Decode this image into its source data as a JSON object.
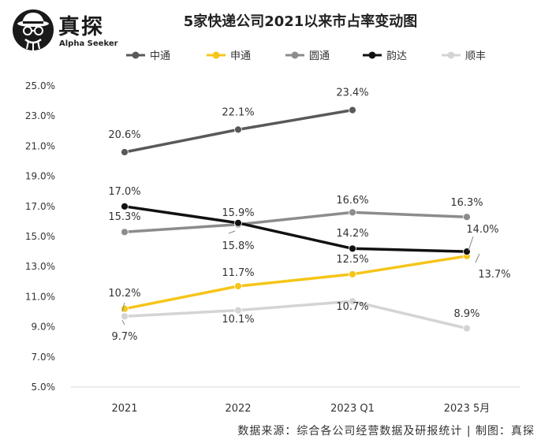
{
  "brand": {
    "name_cn": "真探",
    "name_en": "Alpha Seeker"
  },
  "source_note": "数据来源：综合各公司经营数据及研报统计 | 制图：真探",
  "chart_data": {
    "type": "line",
    "title": "5家快递公司2021以来市占率变动图",
    "xlabel": "",
    "ylabel": "",
    "categories": [
      "2021",
      "2022",
      "2023 Q1",
      "2023 5月"
    ],
    "ylim": [
      5.0,
      25.0
    ],
    "yticks": [
      "5.0%",
      "7.0%",
      "9.0%",
      "11.0%",
      "13.0%",
      "15.0%",
      "17.0%",
      "19.0%",
      "21.0%",
      "23.0%",
      "25.0%"
    ],
    "ytick_values": [
      5,
      7,
      9,
      11,
      13,
      15,
      17,
      19,
      21,
      23,
      25
    ],
    "grid": false,
    "legend_position": "top",
    "series": [
      {
        "name": "中通",
        "color": "#595959",
        "values": [
          20.6,
          22.1,
          23.4,
          null
        ],
        "labels": [
          "20.6%",
          "22.1%",
          "23.4%",
          ""
        ]
      },
      {
        "name": "申通",
        "color": "#f5c518",
        "values": [
          10.2,
          11.7,
          12.5,
          13.7
        ],
        "labels": [
          "10.2%",
          "11.7%",
          "12.5%",
          "13.7%"
        ]
      },
      {
        "name": "圆通",
        "color": "#8c8c8c",
        "values": [
          15.3,
          15.8,
          16.6,
          16.3
        ],
        "labels": [
          "15.3%",
          "15.8%",
          "16.6%",
          "16.3%"
        ]
      },
      {
        "name": "韵达",
        "color": "#111111",
        "values": [
          17.0,
          15.9,
          14.2,
          14.0
        ],
        "labels": [
          "17.0%",
          "15.9%",
          "14.2%",
          "14.0%"
        ]
      },
      {
        "name": "顺丰",
        "color": "#d4d4d4",
        "values": [
          9.7,
          10.1,
          10.7,
          8.9
        ],
        "labels": [
          "9.7%",
          "10.1%",
          "10.7%",
          "8.9%"
        ]
      }
    ]
  }
}
